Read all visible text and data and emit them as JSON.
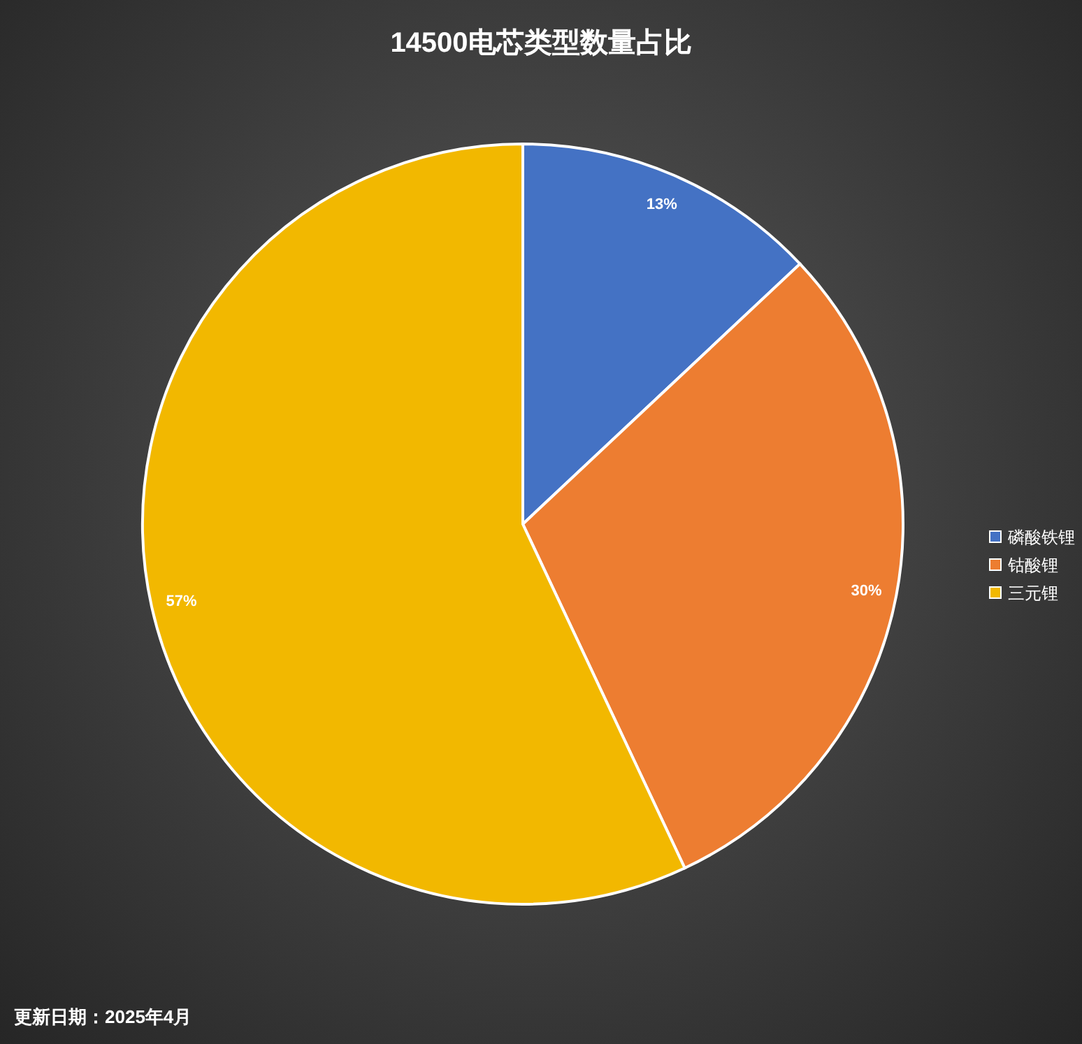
{
  "chart_data": {
    "type": "pie",
    "title": "14500电芯类型数量占比",
    "categories": [
      "磷酸铁锂",
      "钴酸锂",
      "三元锂"
    ],
    "values": [
      13,
      30,
      57
    ],
    "colors": [
      "#4472c4",
      "#ed7d31",
      "#f2b800"
    ],
    "value_labels": [
      "13%",
      "30%",
      "57%"
    ],
    "legend": "right",
    "annotations": [
      "更新日期：2025年4月"
    ]
  }
}
